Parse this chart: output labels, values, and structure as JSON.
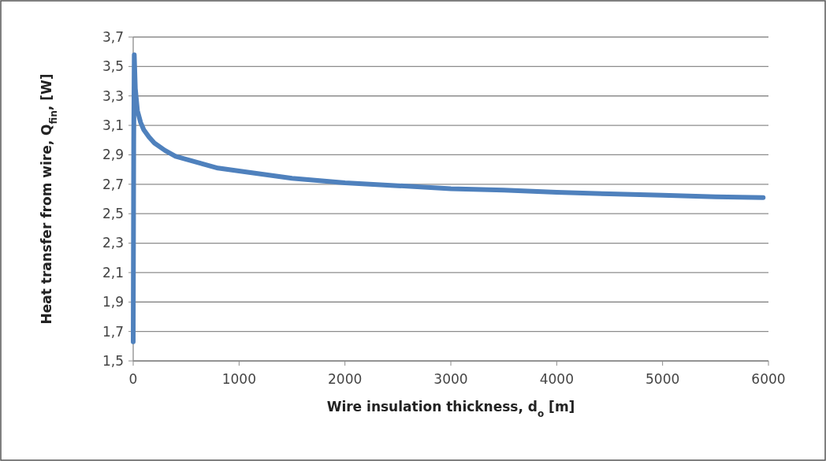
{
  "chart_data": {
    "type": "line",
    "xlabel": "Wire insulation thickness, d$_{o}$ [m]",
    "ylabel": "Heat transfer from wire, Q$_{fin}$, [W]",
    "x": [
      0,
      5,
      10,
      20,
      40,
      70,
      100,
      150,
      200,
      300,
      400,
      600,
      800,
      1000,
      1500,
      2000,
      2500,
      3000,
      3500,
      4000,
      4500,
      5000,
      5500,
      5950
    ],
    "series": [
      {
        "color": "#4f81bd",
        "values": [
          1.63,
          3.0,
          3.58,
          3.35,
          3.2,
          3.12,
          3.07,
          3.02,
          2.98,
          2.93,
          2.89,
          2.85,
          2.81,
          2.79,
          2.74,
          2.71,
          2.69,
          2.67,
          2.66,
          2.645,
          2.635,
          2.625,
          2.615,
          2.61
        ]
      }
    ],
    "xlim": [
      0,
      6000
    ],
    "xticks": [
      0,
      1000,
      2000,
      3000,
      4000,
      5000,
      6000
    ],
    "ylim": [
      1.5,
      3.7
    ],
    "yticks": [
      {
        "value": 1.5,
        "label": "1,5"
      },
      {
        "value": 1.7,
        "label": "1,7"
      },
      {
        "value": 1.9,
        "label": "1,9"
      },
      {
        "value": 2.1,
        "label": "2,1"
      },
      {
        "value": 2.3,
        "label": "2,3"
      },
      {
        "value": 2.5,
        "label": "2,5"
      },
      {
        "value": 2.7,
        "label": "2,7"
      },
      {
        "value": 2.9,
        "label": "2,9"
      },
      {
        "value": 3.1,
        "label": "3,1"
      },
      {
        "value": 3.3,
        "label": "3,3"
      },
      {
        "value": 3.5,
        "label": "3,5"
      },
      {
        "value": 3.7,
        "label": "3,7"
      }
    ],
    "grid": "y",
    "marker": "none",
    "line_style": "solid"
  }
}
